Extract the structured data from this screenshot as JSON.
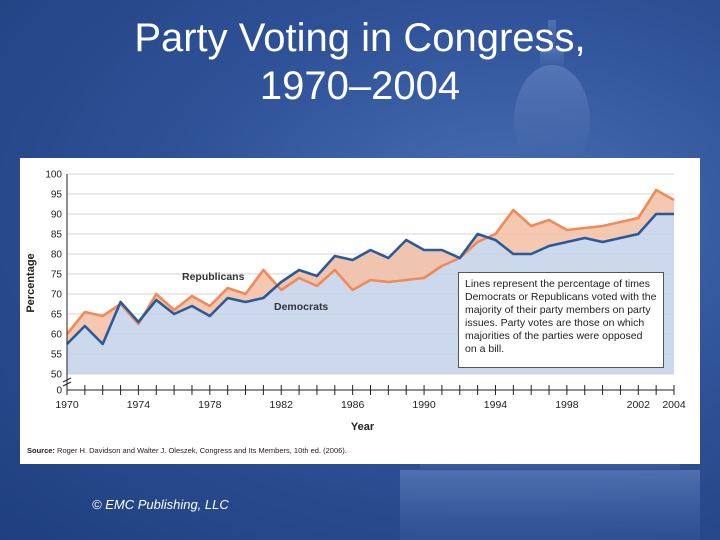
{
  "slide": {
    "title_line1": "Party Voting in Congress,",
    "title_line2": "1970–2004",
    "footer": "© EMC Publishing, LLC"
  },
  "chart_data": {
    "type": "line",
    "title": "",
    "xlabel": "Year",
    "ylabel": "Percentage",
    "xlim": [
      1970,
      2004
    ],
    "ylim": [
      50,
      100
    ],
    "y_axis_break": true,
    "x_ticks": [
      1970,
      1974,
      1978,
      1982,
      1986,
      1990,
      1994,
      1998,
      2002,
      2004
    ],
    "y_ticks": [
      0,
      50,
      55,
      60,
      65,
      70,
      75,
      80,
      85,
      90,
      95,
      100
    ],
    "grid": "horizontal",
    "x": [
      1970,
      1971,
      1972,
      1973,
      1974,
      1975,
      1976,
      1977,
      1978,
      1979,
      1980,
      1981,
      1982,
      1983,
      1984,
      1985,
      1986,
      1987,
      1988,
      1989,
      1990,
      1991,
      1992,
      1993,
      1994,
      1995,
      1996,
      1997,
      1998,
      1999,
      2000,
      2001,
      2002,
      2003,
      2004
    ],
    "series": [
      {
        "name": "Republicans",
        "color": "#f08a5a",
        "values": [
          60,
          65.5,
          64.5,
          67.5,
          62.5,
          70,
          66,
          69.5,
          67,
          71.5,
          70,
          76,
          71,
          74,
          72,
          76,
          71,
          73.5,
          73,
          73.5,
          74,
          77,
          79,
          83,
          85,
          91,
          87,
          88.5,
          86,
          86.5,
          87,
          88,
          89,
          96,
          93.5
        ]
      },
      {
        "name": "Democrats",
        "color": "#2a5a9a",
        "values": [
          57.5,
          62,
          57.5,
          68,
          63,
          68.5,
          65,
          67,
          64.5,
          69,
          68,
          69,
          73,
          76,
          74.5,
          79.5,
          78.5,
          81,
          79,
          83.5,
          81,
          81,
          79,
          85,
          83.5,
          80,
          80,
          82,
          83,
          84,
          83,
          84,
          85,
          90,
          90
        ]
      }
    ],
    "annotations": {
      "republicans_label": "Republicans",
      "democrats_label": "Democrats",
      "note": "Lines represent the percentage of times Democrats or Republicans voted with the majority of their party members on party issues. Party votes are those on which majorities of the parties were opposed on a bill.",
      "source_prefix": "Source:",
      "source_text": "Roger H. Davidson and Walter J. Oleszek, Congress and Its Members, 10th ed. (2006)."
    },
    "fill_colors": {
      "between_series": "#f3c2a8",
      "under_democrats": "#c3d2ea"
    }
  }
}
